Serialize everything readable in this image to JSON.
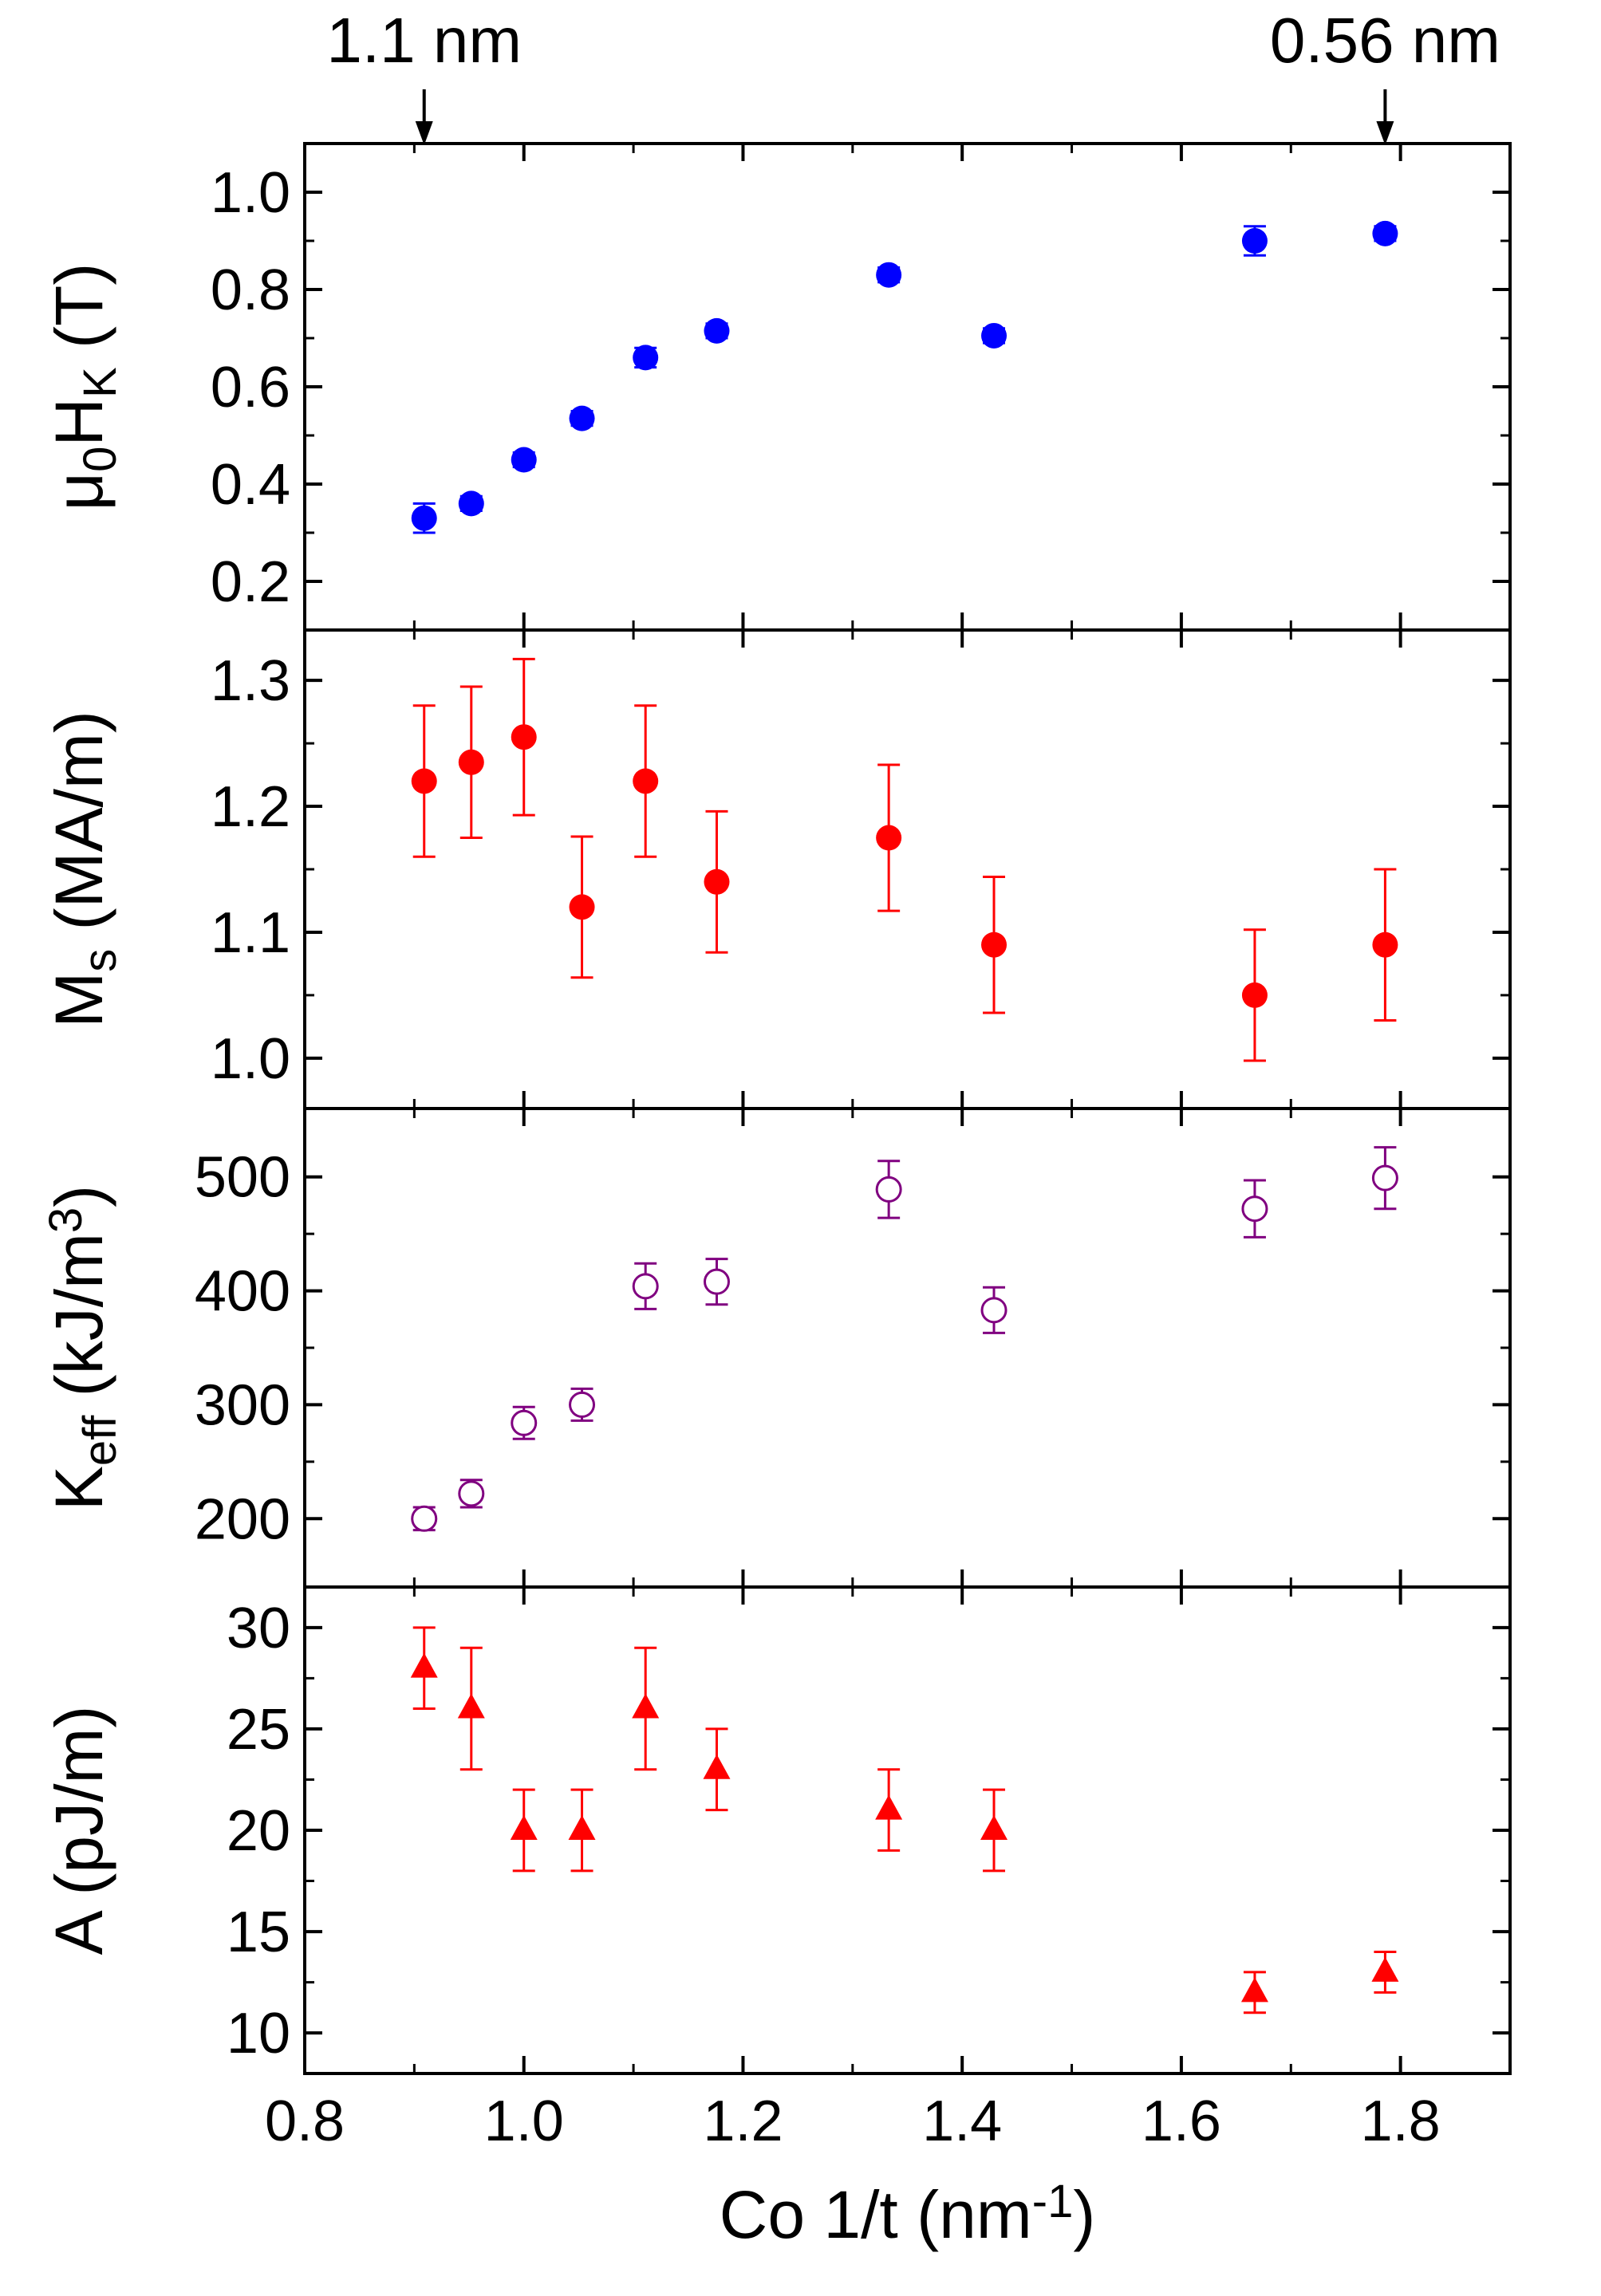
{
  "chart_data": [
    {
      "type": "scatter",
      "ylabel": {
        "base": "μ",
        "sub1": "0",
        "mid": "H",
        "sub2": "K",
        "tail": " (T)"
      },
      "ylim": [
        0.1,
        1.1
      ],
      "yticks": [
        0.2,
        0.4,
        0.6,
        0.8,
        1.0
      ],
      "ytick_labels": [
        "0.2",
        "0.4",
        "0.6",
        "0.8",
        "1.0"
      ],
      "color": "#0000ff",
      "marker": "filled-circle",
      "x": [
        0.909,
        0.952,
        1.0,
        1.053,
        1.111,
        1.176,
        1.333,
        1.429,
        1.667,
        1.786
      ],
      "y": [
        0.33,
        0.36,
        0.45,
        0.535,
        0.66,
        0.715,
        0.83,
        0.705,
        0.9,
        0.915
      ],
      "yerr": [
        0.03,
        0.015,
        0.015,
        0.015,
        0.02,
        0.015,
        0.015,
        0.015,
        0.03,
        0.015
      ]
    },
    {
      "type": "scatter",
      "ylabel": {
        "base": "M",
        "sub": "s",
        "tail": " (MA/m)"
      },
      "ylim": [
        0.96,
        1.34
      ],
      "yticks": [
        1.0,
        1.1,
        1.2,
        1.3
      ],
      "ytick_labels": [
        "1.0",
        "1.1",
        "1.2",
        "1.3"
      ],
      "color": "#ff0000",
      "marker": "filled-circle",
      "x": [
        0.909,
        0.952,
        1.0,
        1.053,
        1.111,
        1.176,
        1.333,
        1.429,
        1.667,
        1.786
      ],
      "y": [
        1.22,
        1.235,
        1.255,
        1.12,
        1.22,
        1.14,
        1.175,
        1.09,
        1.05,
        1.09
      ],
      "yerr": [
        0.06,
        0.06,
        0.062,
        0.056,
        0.06,
        0.056,
        0.058,
        0.054,
        0.052,
        0.06
      ]
    },
    {
      "type": "scatter",
      "ylabel": {
        "base": "K",
        "sub": "eff",
        "mid": " (kJ/m",
        "sup": "3",
        "tail": ")"
      },
      "ylim": [
        140,
        560
      ],
      "yticks": [
        200,
        300,
        400,
        500
      ],
      "ytick_labels": [
        "200",
        "300",
        "400",
        "500"
      ],
      "color": "#800080",
      "marker": "open-circle",
      "x": [
        0.909,
        0.952,
        1.0,
        1.053,
        1.111,
        1.176,
        1.333,
        1.429,
        1.667,
        1.786
      ],
      "y": [
        200,
        222,
        284,
        300,
        404,
        408,
        489,
        383,
        472,
        499
      ],
      "yerr": [
        10,
        12,
        14,
        14,
        20,
        20,
        25,
        20,
        25,
        27
      ]
    },
    {
      "type": "scatter",
      "ylabel": {
        "base": "A",
        "tail": " (pJ/m)"
      },
      "ylim": [
        8,
        32
      ],
      "yticks": [
        10,
        15,
        20,
        25,
        30
      ],
      "ytick_labels": [
        "10",
        "15",
        "20",
        "25",
        "30"
      ],
      "color": "#ff0000",
      "marker": "filled-triangle",
      "x": [
        0.909,
        0.952,
        1.0,
        1.053,
        1.111,
        1.176,
        1.333,
        1.429,
        1.667,
        1.786
      ],
      "y": [
        28,
        26,
        20,
        20,
        26,
        23,
        21,
        20,
        12,
        13
      ],
      "yerr": [
        2,
        3,
        2,
        2,
        3,
        2,
        2,
        2,
        1,
        1
      ]
    }
  ],
  "x_axis": {
    "label_main": "Co 1/t (nm",
    "label_sup": "-1",
    "label_tail": ")",
    "xlim": [
      0.8,
      1.9
    ],
    "ticks": [
      0.8,
      1.0,
      1.2,
      1.4,
      1.6,
      1.8
    ],
    "tick_labels": [
      "0.8",
      "1.0",
      "1.2",
      "1.4",
      "1.6",
      "1.8"
    ]
  },
  "top_annotations": [
    {
      "text": "1.1 nm",
      "x": 0.909
    },
    {
      "text": "0.56 nm",
      "x": 1.786
    }
  ]
}
